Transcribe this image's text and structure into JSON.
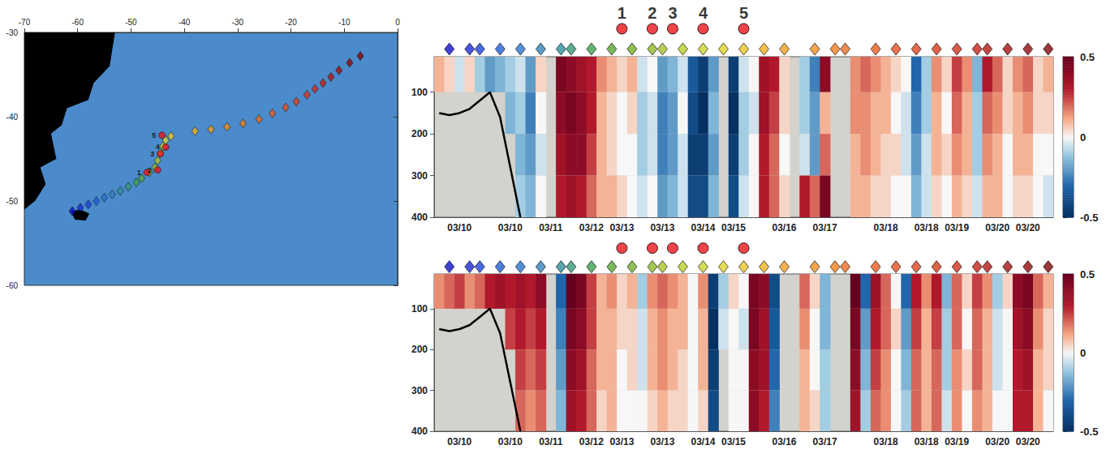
{
  "chart_data": {
    "type": "section",
    "map": {
      "xlim": [
        -70,
        0
      ],
      "xticks": [
        -70,
        -60,
        -50,
        -40,
        -30,
        -20,
        -10,
        0
      ],
      "ylim": [
        -60,
        -30
      ],
      "yticks": [
        -60,
        -50,
        -40,
        -30
      ],
      "land": [
        [
          [
            -70,
            -30
          ],
          [
            -53,
            -30
          ],
          [
            -54,
            -34
          ],
          [
            -57,
            -36
          ],
          [
            -58,
            -38
          ],
          [
            -62,
            -39
          ],
          [
            -63,
            -41
          ],
          [
            -65,
            -42
          ],
          [
            -64,
            -45
          ],
          [
            -67,
            -46
          ],
          [
            -66,
            -48
          ],
          [
            -68,
            -50
          ],
          [
            -70,
            -51
          ]
        ],
        [
          [
            -61.3,
            -51.2
          ],
          [
            -59.5,
            -51.0
          ],
          [
            -57.8,
            -51.5
          ],
          [
            -58.5,
            -52.3
          ],
          [
            -60.5,
            -52.2
          ]
        ]
      ]
    },
    "track": {
      "marker": "diamond",
      "colors": [
        "#1010c8",
        "#1a2ad6",
        "#1c44dc",
        "#1f5ed8",
        "#2a74cc",
        "#3382bc",
        "#2f8e9c",
        "#36987a",
        "#3fa04e",
        "#58a832",
        "#74b02a",
        "#90ba2a",
        "#a8c42a",
        "#bccd2c",
        "#ccd32e",
        "#dcd22a",
        "#e8c624",
        "#f0b020",
        "#f29e20",
        "#f48e20",
        "#f27e20",
        "#ef6e20",
        "#ec5e20",
        "#e65020",
        "#e0441e",
        "#d8381c",
        "#d02e1a",
        "#c42218",
        "#b41814",
        "#a41010",
        "#940a0c",
        "#820408"
      ],
      "lon": [
        -61,
        -59.5,
        -58,
        -56.5,
        -55,
        -53.5,
        -52,
        -50.5,
        -49,
        -48,
        -46.5,
        -45.5,
        -45,
        -44.5,
        -44,
        -43.5,
        -42.5,
        -38,
        -35,
        -32,
        -29,
        -26,
        -23.5,
        -21,
        -19,
        -17,
        -15.5,
        -14,
        -12.5,
        -11,
        -9,
        -7
      ],
      "lat": [
        -51.2,
        -50.8,
        -50.4,
        -50.0,
        -49.6,
        -49.2,
        -48.8,
        -48.3,
        -47.8,
        -47.3,
        -46.6,
        -46.0,
        -45.2,
        -44.3,
        -43.5,
        -42.8,
        -42.3,
        -41.7,
        -41.5,
        -41.2,
        -40.8,
        -40.3,
        -39.6,
        -38.9,
        -38.2,
        -37.4,
        -36.7,
        -36.0,
        -35.3,
        -34.5,
        -33.6,
        -32.8
      ],
      "columns": [
        1,
        3,
        4,
        6,
        8,
        10,
        12,
        13,
        15,
        17,
        19,
        21,
        22,
        24,
        26,
        28,
        30,
        32,
        34,
        37,
        39,
        40,
        43,
        45,
        47,
        49,
        51,
        53,
        54,
        56,
        58,
        60
      ]
    },
    "stations": {
      "marker": "circle",
      "color": "#e8141c",
      "labels": [
        "1",
        "2",
        "3",
        "4",
        "5"
      ],
      "lon": [
        -47,
        -45,
        -44.5,
        -43.5,
        -44.2
      ],
      "lat": [
        -46.6,
        -46.3,
        -44.4,
        -43.6,
        -42.2
      ],
      "columns": [
        18,
        21,
        23,
        26,
        30
      ]
    },
    "categories": [
      null,
      null,
      "03/10",
      null,
      null,
      null,
      null,
      "03/10",
      null,
      null,
      null,
      "03/11",
      null,
      null,
      null,
      "03/12",
      null,
      null,
      "03/13",
      null,
      null,
      null,
      "03/13",
      null,
      null,
      null,
      "03/14",
      null,
      null,
      "03/15",
      null,
      null,
      null,
      null,
      "03/16",
      null,
      null,
      null,
      "03/17",
      null,
      null,
      null,
      null,
      null,
      "03/18",
      null,
      null,
      null,
      "03/18",
      null,
      null,
      "03/19",
      null,
      null,
      null,
      "03/20",
      null,
      null,
      "03/20",
      null,
      null
    ],
    "ylim": [
      15,
      400
    ],
    "yticks": [
      100,
      200,
      300,
      400
    ],
    "depth_edges": [
      15,
      100,
      200,
      300,
      400
    ],
    "colorbar": {
      "range": [
        -0.5,
        0.5
      ],
      "ticks": [
        -0.5,
        0,
        0.5
      ]
    },
    "seafloor": {
      "columns": [
        0,
        1,
        2,
        3,
        4,
        5,
        6,
        7,
        8
      ],
      "depth": [
        150,
        155,
        150,
        140,
        120,
        100,
        160,
        280,
        400
      ]
    },
    "panels": [
      {
        "data_labels": true,
        "cells": [
          [
            0.1,
            null,
            null,
            null
          ],
          [
            0.05,
            null,
            null,
            null
          ],
          [
            -0.05,
            null,
            null,
            null
          ],
          [
            0.05,
            null,
            null,
            null
          ],
          [
            -0.1,
            null,
            null,
            null
          ],
          [
            -0.2,
            null,
            null,
            null
          ],
          [
            -0.15,
            null,
            null,
            null
          ],
          [
            -0.1,
            -0.15,
            null,
            null
          ],
          [
            -0.05,
            -0.1,
            -0.15,
            -0.1
          ],
          [
            -0.2,
            -0.25,
            -0.2,
            -0.15
          ],
          [
            0.05,
            0.0,
            -0.05,
            0.0
          ],
          [
            null,
            null,
            null,
            null
          ],
          [
            0.45,
            0.4,
            0.35,
            0.3
          ],
          [
            0.4,
            0.45,
            0.4,
            0.35
          ],
          [
            0.35,
            0.4,
            0.4,
            0.3
          ],
          [
            0.3,
            0.3,
            0.25,
            0.2
          ],
          [
            0.15,
            0.1,
            0.1,
            0.1
          ],
          [
            0.1,
            0.05,
            0.05,
            0.1
          ],
          [
            0.05,
            0.0,
            0.0,
            0.05
          ],
          [
            0.1,
            0.05,
            0.0,
            0.0
          ],
          [
            -0.05,
            -0.1,
            -0.1,
            -0.05
          ],
          [
            0.0,
            -0.05,
            -0.05,
            0.0
          ],
          [
            -0.2,
            -0.25,
            -0.25,
            -0.2
          ],
          [
            -0.15,
            -0.2,
            -0.2,
            -0.15
          ],
          [
            -0.05,
            0.0,
            -0.05,
            -0.05
          ],
          [
            -0.35,
            -0.4,
            -0.45,
            -0.4
          ],
          [
            -0.45,
            -0.5,
            -0.45,
            -0.4
          ],
          [
            -0.2,
            -0.15,
            -0.2,
            -0.15
          ],
          [
            null,
            null,
            null,
            null
          ],
          [
            -0.45,
            -0.5,
            -0.45,
            -0.4
          ],
          [
            -0.05,
            -0.1,
            -0.1,
            -0.05
          ],
          [
            0.0,
            -0.05,
            0.0,
            0.0
          ],
          [
            0.35,
            0.35,
            0.3,
            0.3
          ],
          [
            0.3,
            0.25,
            0.2,
            0.2
          ],
          [
            0.05,
            0.05,
            0.0,
            0.05
          ],
          [
            null,
            null,
            null,
            null
          ],
          [
            -0.1,
            -0.1,
            -0.05,
            0.3
          ],
          [
            -0.25,
            -0.2,
            -0.2,
            0.2
          ],
          [
            0.4,
            0.1,
            0.2,
            0.45
          ],
          [
            null,
            null,
            null,
            null
          ],
          [
            null,
            null,
            null,
            null
          ],
          [
            0.15,
            0.15,
            0.1,
            0.1
          ],
          [
            0.2,
            0.15,
            0.15,
            0.1
          ],
          [
            0.15,
            0.1,
            0.1,
            0.05
          ],
          [
            0.1,
            0.1,
            0.05,
            0.05
          ],
          [
            0.05,
            0.0,
            0.05,
            0.0
          ],
          [
            0.0,
            -0.05,
            -0.05,
            0.0
          ],
          [
            -0.3,
            -0.25,
            -0.2,
            -0.15
          ],
          [
            -0.1,
            -0.1,
            -0.05,
            -0.05
          ],
          [
            0.15,
            0.1,
            0.1,
            0.05
          ],
          [
            0.05,
            0.0,
            0.05,
            0.0
          ],
          [
            0.25,
            0.2,
            0.15,
            0.1
          ],
          [
            0.15,
            0.1,
            0.1,
            0.05
          ],
          [
            -0.15,
            -0.1,
            -0.1,
            -0.05
          ],
          [
            0.3,
            0.2,
            0.15,
            0.1
          ],
          [
            0.2,
            0.15,
            0.1,
            0.1
          ],
          [
            0.05,
            0.05,
            0.0,
            0.0
          ],
          [
            0.15,
            0.1,
            0.1,
            0.05
          ],
          [
            0.2,
            0.15,
            0.1,
            0.05
          ],
          [
            0.05,
            0.05,
            0.0,
            0.0
          ],
          [
            0.1,
            0.05,
            0.0,
            -0.05
          ]
        ]
      },
      {
        "data_labels": false,
        "cells": [
          [
            0.15,
            null,
            null,
            null
          ],
          [
            0.2,
            null,
            null,
            null
          ],
          [
            0.25,
            null,
            null,
            null
          ],
          [
            0.15,
            null,
            null,
            null
          ],
          [
            0.2,
            null,
            null,
            null
          ],
          [
            0.3,
            null,
            null,
            null
          ],
          [
            0.35,
            null,
            null,
            null
          ],
          [
            0.3,
            0.25,
            null,
            null
          ],
          [
            0.35,
            0.3,
            0.25,
            0.2
          ],
          [
            0.3,
            0.25,
            0.2,
            0.15
          ],
          [
            0.4,
            0.3,
            0.25,
            0.2
          ],
          [
            null,
            null,
            null,
            null
          ],
          [
            -0.3,
            -0.25,
            -0.2,
            -0.15
          ],
          [
            0.5,
            0.45,
            0.4,
            0.35
          ],
          [
            0.45,
            0.4,
            0.35,
            0.3
          ],
          [
            0.25,
            0.25,
            0.2,
            0.2
          ],
          [
            0.1,
            0.1,
            0.1,
            0.05
          ],
          [
            0.15,
            0.1,
            0.1,
            0.1
          ],
          [
            0.05,
            0.05,
            0.0,
            0.0
          ],
          [
            0.1,
            0.05,
            0.05,
            0.0
          ],
          [
            -0.1,
            -0.05,
            -0.05,
            0.0
          ],
          [
            0.15,
            0.1,
            0.1,
            0.05
          ],
          [
            0.2,
            0.15,
            0.15,
            0.1
          ],
          [
            0.15,
            0.1,
            0.1,
            0.05
          ],
          [
            0.1,
            0.1,
            0.05,
            0.05
          ],
          [
            0.0,
            0.0,
            0.0,
            0.0
          ],
          [
            0.15,
            0.1,
            0.1,
            0.05
          ],
          [
            -0.45,
            -0.5,
            -0.45,
            -0.4
          ],
          [
            -0.1,
            -0.05,
            null,
            null
          ],
          [
            0.05,
            0.0,
            0.0,
            0.0
          ],
          [
            0.0,
            -0.05,
            0.0,
            0.0
          ],
          [
            0.45,
            0.45,
            0.4,
            0.4
          ],
          [
            0.4,
            0.35,
            0.35,
            0.3
          ],
          [
            -0.4,
            -0.35,
            -0.3,
            -0.25
          ],
          [
            null,
            null,
            null,
            null
          ],
          [
            null,
            null,
            null,
            null
          ],
          [
            0.2,
            0.15,
            0.1,
            0.1
          ],
          [
            0.05,
            0.0,
            0.0,
            0.05
          ],
          [
            -0.15,
            -0.15,
            -0.1,
            -0.1
          ],
          [
            null,
            null,
            null,
            null
          ],
          [
            null,
            null,
            null,
            null
          ],
          [
            0.5,
            0.45,
            0.4,
            0.35
          ],
          [
            -0.3,
            -0.2,
            -0.15,
            -0.1
          ],
          [
            0.35,
            0.3,
            0.25,
            0.2
          ],
          [
            0.2,
            0.2,
            0.15,
            0.15
          ],
          [
            0.0,
            0.05,
            0.0,
            0.0
          ],
          [
            -0.3,
            -0.2,
            -0.15,
            -0.1
          ],
          [
            0.3,
            0.25,
            0.2,
            0.2
          ],
          [
            0.15,
            0.1,
            0.1,
            0.1
          ],
          [
            0.3,
            0.25,
            0.2,
            0.2
          ],
          [
            -0.15,
            -0.1,
            -0.1,
            -0.05
          ],
          [
            0.2,
            0.2,
            0.15,
            0.15
          ],
          [
            0.05,
            0.0,
            0.05,
            0.0
          ],
          [
            0.25,
            0.2,
            0.2,
            0.15
          ],
          [
            0.15,
            0.1,
            0.1,
            0.1
          ],
          [
            -0.1,
            -0.05,
            -0.05,
            0.0
          ],
          [
            0.05,
            0.0,
            0.0,
            0.0
          ],
          [
            0.4,
            0.35,
            0.3,
            0.3
          ],
          [
            0.45,
            0.4,
            0.35,
            0.3
          ],
          [
            0.2,
            0.15,
            0.1,
            0.1
          ],
          [
            0.1,
            0.05,
            0.05,
            0.0
          ]
        ]
      }
    ]
  }
}
